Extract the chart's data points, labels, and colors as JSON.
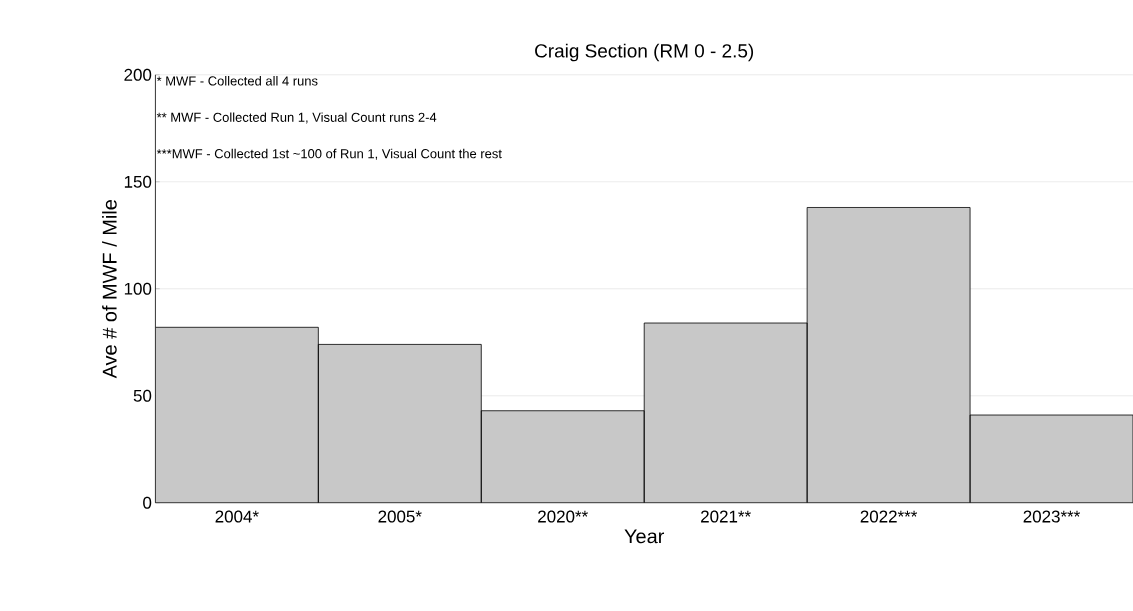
{
  "chart_data": {
    "type": "bar",
    "title": "Craig Section (RM 0 - 2.5)",
    "xlabel": "Year",
    "ylabel": "Ave # of MWF / Mile",
    "categories": [
      "2004*",
      "2005*",
      "2020**",
      "2021**",
      "2022***",
      "2023***"
    ],
    "values": [
      82,
      74,
      43,
      84,
      138,
      41
    ],
    "color": "#c8c8c8",
    "ylim": [
      0,
      200
    ],
    "yticks": [
      0,
      50,
      100,
      150,
      200
    ],
    "grid": "y",
    "annotations": [
      "* MWF - Collected all 4 runs",
      "** MWF - Collected Run 1, Visual Count runs 2-4",
      "***MWF - Collected 1st ~100 of Run 1, Visual Count the rest"
    ]
  }
}
